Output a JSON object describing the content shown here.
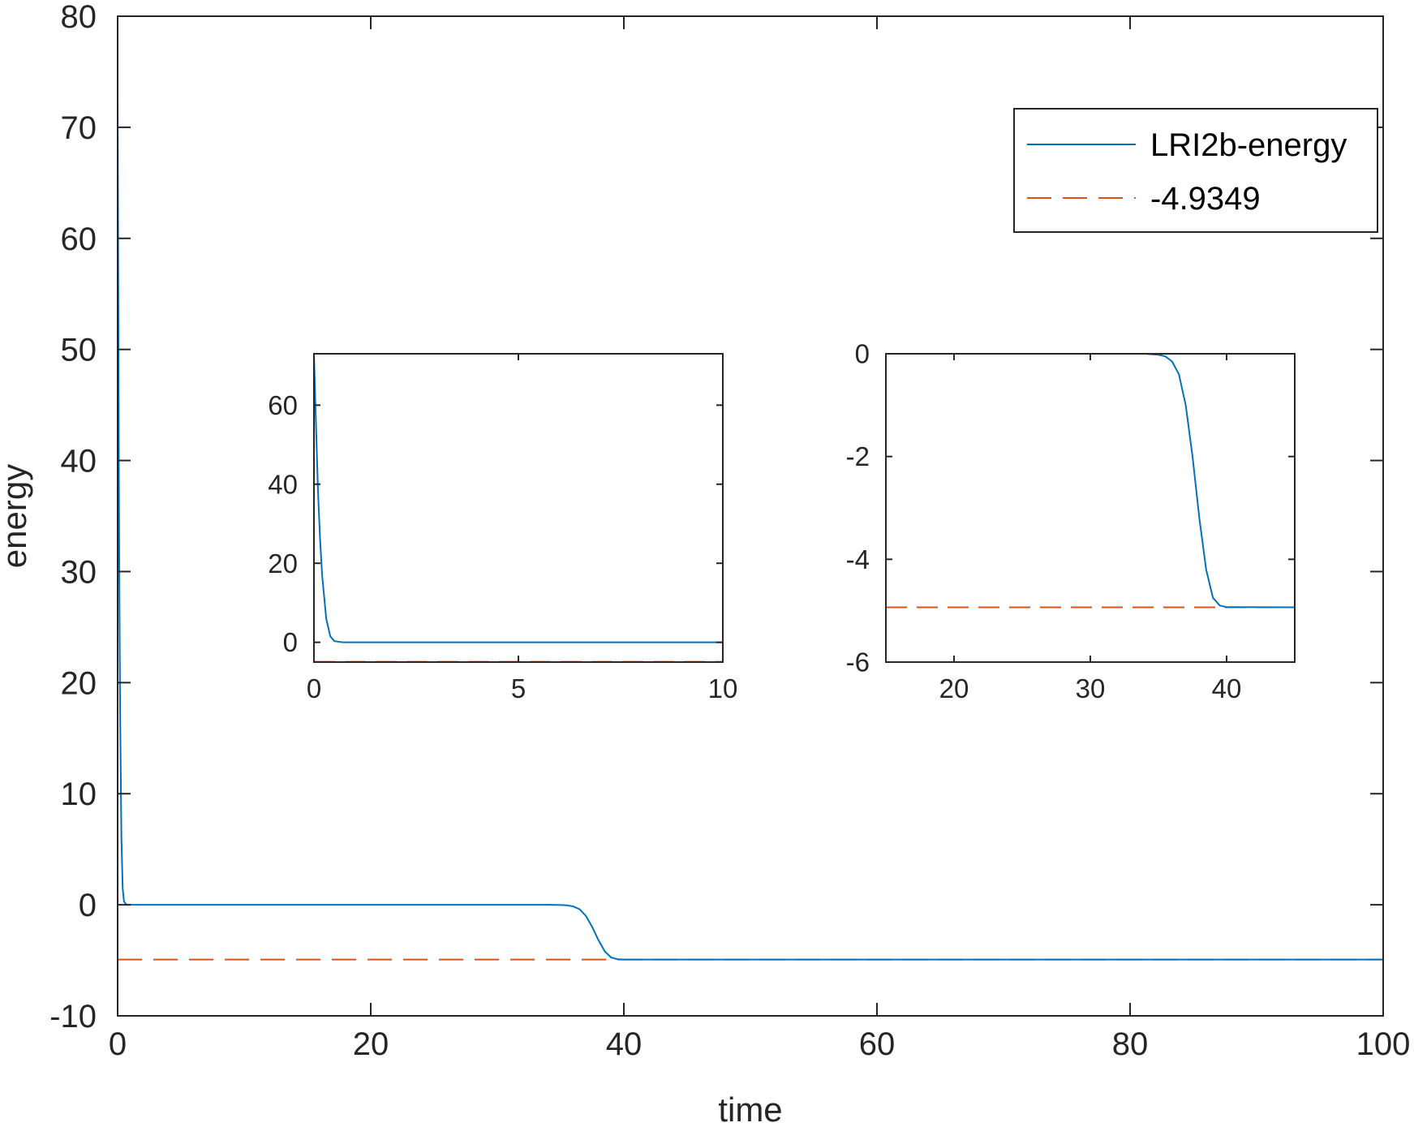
{
  "chart_data": [
    {
      "id": "main",
      "type": "line",
      "xlabel": "time",
      "ylabel": "energy",
      "xlim": [
        0,
        100
      ],
      "ylim": [
        -10,
        80
      ],
      "xticks": [
        0,
        20,
        40,
        60,
        80,
        100
      ],
      "yticks": [
        -10,
        0,
        10,
        20,
        30,
        40,
        50,
        60,
        70,
        80
      ],
      "grid": false,
      "legend_position": "top-right",
      "series": [
        {
          "name": "LRI2b-energy",
          "color": "#0072BD",
          "style": "solid",
          "points": [
            [
              0,
              73
            ],
            [
              0.05,
              55
            ],
            [
              0.1,
              38
            ],
            [
              0.15,
              26
            ],
            [
              0.2,
              17
            ],
            [
              0.3,
              6
            ],
            [
              0.4,
              1.5
            ],
            [
              0.5,
              0.3
            ],
            [
              0.7,
              0
            ],
            [
              10,
              0
            ],
            [
              20,
              0
            ],
            [
              30,
              0
            ],
            [
              34,
              0
            ],
            [
              35,
              -0.02
            ],
            [
              35.5,
              -0.05
            ],
            [
              36,
              -0.15
            ],
            [
              36.5,
              -0.4
            ],
            [
              37,
              -1
            ],
            [
              37.5,
              -2
            ],
            [
              38,
              -3.2
            ],
            [
              38.5,
              -4.2
            ],
            [
              39,
              -4.75
            ],
            [
              39.5,
              -4.9
            ],
            [
              40,
              -4.93
            ],
            [
              45,
              -4.9349
            ],
            [
              100,
              -4.9349
            ]
          ]
        },
        {
          "name": "-4.9349",
          "color": "#D95319",
          "style": "dashed",
          "points": [
            [
              0,
              -4.9349
            ],
            [
              100,
              -4.9349
            ]
          ]
        }
      ]
    },
    {
      "id": "inset-left",
      "type": "line",
      "xlim": [
        0,
        10
      ],
      "ylim": [
        -5,
        73
      ],
      "xticks": [
        0,
        5,
        10
      ],
      "yticks": [
        0,
        20,
        40,
        60
      ],
      "grid": false,
      "series": [
        {
          "color": "#0072BD",
          "style": "solid",
          "points": [
            [
              0,
              73
            ],
            [
              0.05,
              55
            ],
            [
              0.1,
              38
            ],
            [
              0.15,
              26
            ],
            [
              0.2,
              17
            ],
            [
              0.3,
              6
            ],
            [
              0.4,
              1.5
            ],
            [
              0.5,
              0.3
            ],
            [
              0.7,
              0
            ],
            [
              10,
              0
            ]
          ]
        },
        {
          "color": "#D95319",
          "style": "dashed",
          "points": [
            [
              0,
              -4.9349
            ],
            [
              10,
              -4.9349
            ]
          ]
        }
      ]
    },
    {
      "id": "inset-right",
      "type": "line",
      "xlim": [
        15,
        45
      ],
      "ylim": [
        -6,
        0
      ],
      "xticks": [
        20,
        30,
        40
      ],
      "yticks": [
        -6,
        -4,
        -2,
        0
      ],
      "grid": false,
      "series": [
        {
          "color": "#0072BD",
          "style": "solid",
          "points": [
            [
              15,
              0
            ],
            [
              34,
              0
            ],
            [
              35,
              -0.02
            ],
            [
              35.5,
              -0.05
            ],
            [
              36,
              -0.15
            ],
            [
              36.5,
              -0.4
            ],
            [
              37,
              -1
            ],
            [
              37.5,
              -2
            ],
            [
              38,
              -3.2
            ],
            [
              38.5,
              -4.2
            ],
            [
              39,
              -4.75
            ],
            [
              39.5,
              -4.9
            ],
            [
              40,
              -4.93
            ],
            [
              45,
              -4.9349
            ]
          ]
        },
        {
          "color": "#D95319",
          "style": "dashed",
          "points": [
            [
              15,
              -4.9349
            ],
            [
              45,
              -4.9349
            ]
          ]
        }
      ]
    }
  ]
}
